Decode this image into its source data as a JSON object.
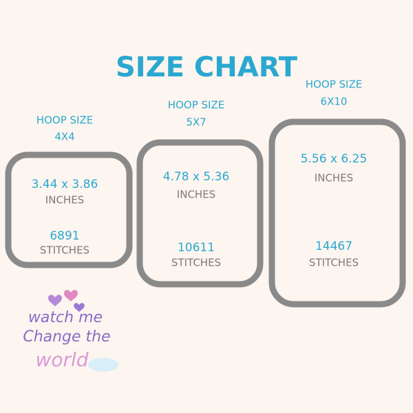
{
  "header": {
    "title": "SIZE CHART"
  },
  "hoops": [
    {
      "label": "HOOP SIZE",
      "size": "4X4",
      "dimensions": "3.44 x 3.86",
      "units": "INCHES",
      "stitches": "6891",
      "stitches_label": "STITCHES"
    },
    {
      "label": "HOOP SIZE",
      "size": "5X7",
      "dimensions": "4.78 x 5.36",
      "units": "INCHES",
      "stitches": "10611",
      "stitches_label": "STITCHES"
    },
    {
      "label": "HOOP SIZE",
      "size": "6X10",
      "dimensions": "5.56 x 6.25",
      "units": "INCHES",
      "stitches": "14467",
      "stitches_label": "STITCHES"
    }
  ],
  "logo": {
    "lines": [
      "watch me",
      "Change the",
      "world"
    ]
  }
}
